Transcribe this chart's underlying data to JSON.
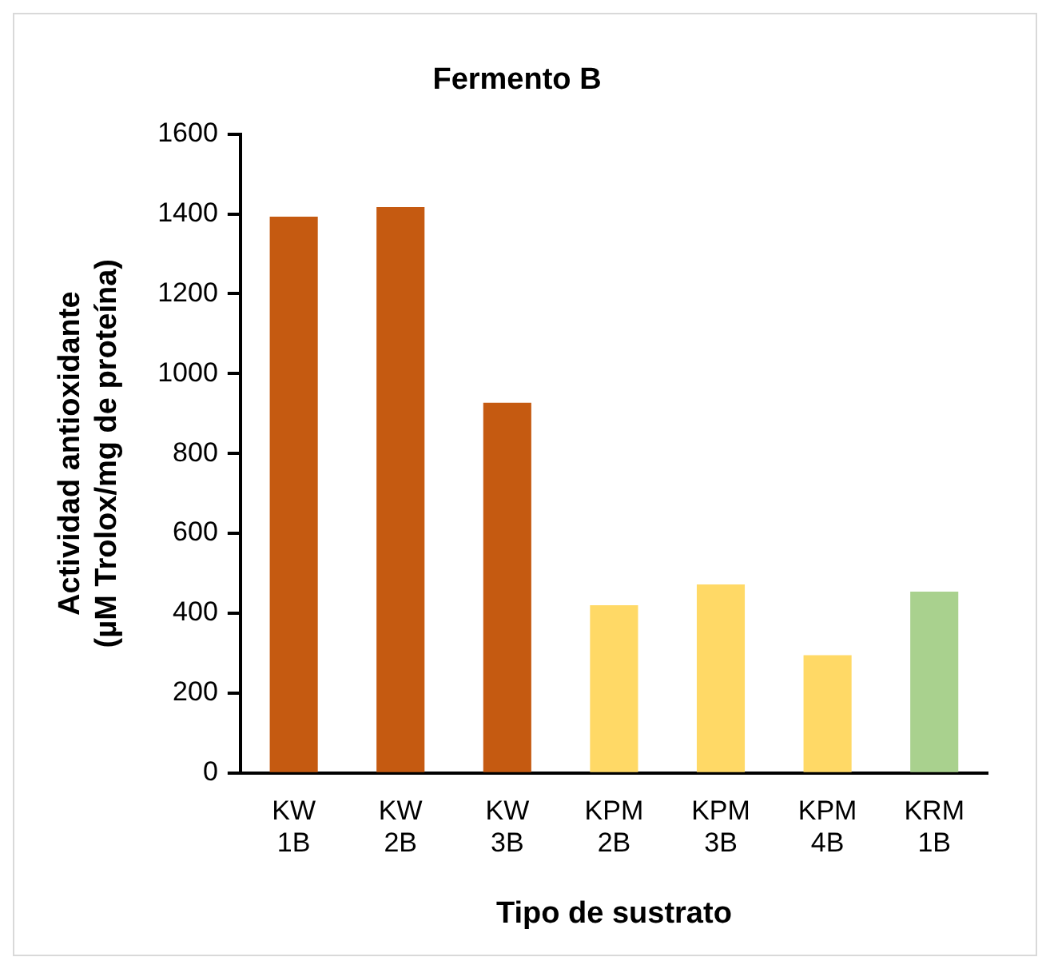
{
  "chart_data": {
    "type": "bar",
    "title": "Fermento B",
    "xlabel": "Tipo de sustrato",
    "ylabel": "Actividad antioxidante\n(µM Trolox/mg de proteína)",
    "categories": [
      "KW 1B",
      "KW 2B",
      "KW 3B",
      "KPM 2B",
      "KPM 3B",
      "KPM 4B",
      "KRM 1B"
    ],
    "values": [
      1393,
      1417,
      927,
      420,
      472,
      295,
      454
    ],
    "colors": [
      "#c55a11",
      "#c55a11",
      "#c55a11",
      "#ffd966",
      "#ffd966",
      "#ffd966",
      "#a9d18e"
    ],
    "ylim": [
      0,
      1600
    ],
    "yticks": [
      0,
      200,
      400,
      600,
      800,
      1000,
      1200,
      1400,
      1600
    ],
    "grid": false,
    "legend": false
  }
}
